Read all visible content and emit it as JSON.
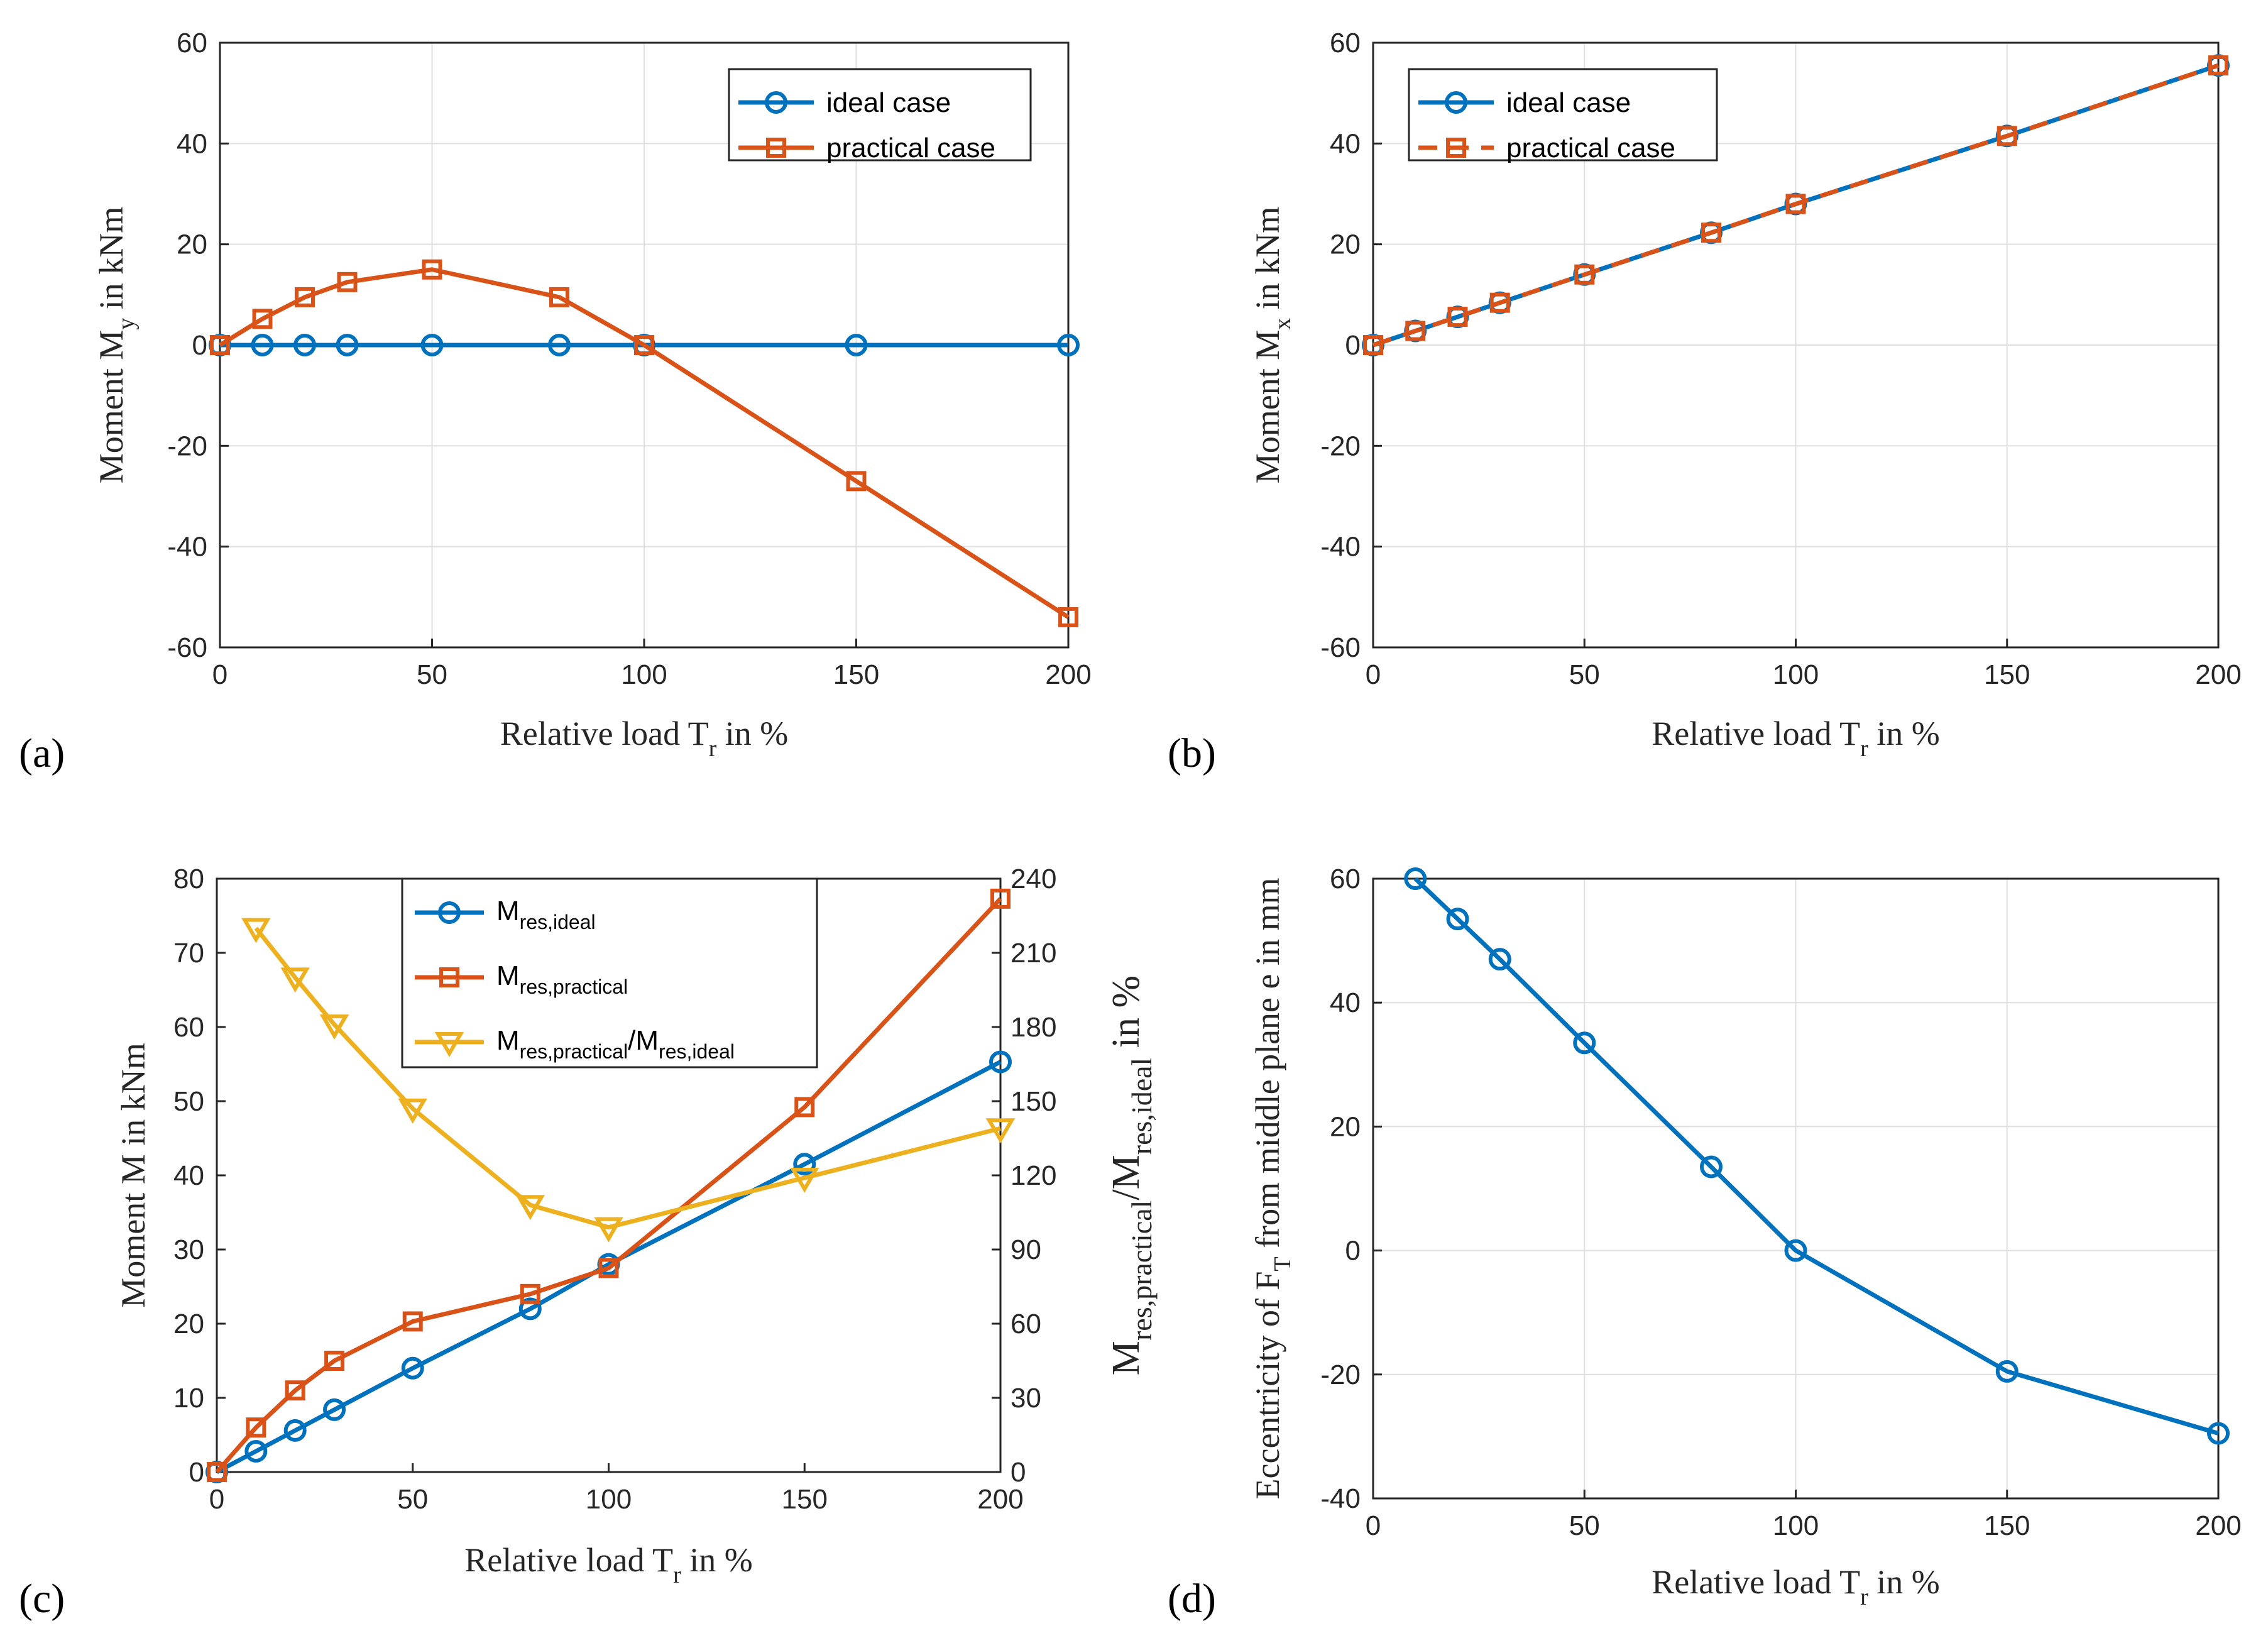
{
  "colors": {
    "ideal": "#0072bd",
    "practical": "#d95319",
    "ratio": "#edb120",
    "axis": "#262626"
  },
  "chart_data": [
    {
      "panel": "(a)",
      "type": "line",
      "xlabel_main": "Relative load T",
      "xlabel_sub": "r",
      "xlabel_tail": " in %",
      "ylabel_main": "Moment M",
      "ylabel_sub": "y",
      "ylabel_tail": " in kNm",
      "xlim": [
        0,
        200
      ],
      "ylim": [
        -60,
        60
      ],
      "xticks": [
        "0",
        "50",
        "100",
        "150",
        "200"
      ],
      "yticks": [
        "-60",
        "-40",
        "-20",
        "0",
        "20",
        "40",
        "60"
      ],
      "legend_position": "top-right",
      "series": [
        {
          "name": "ideal case",
          "marker": "circle",
          "color": "ideal",
          "dash": false,
          "x": [
            0,
            10,
            20,
            30,
            50,
            80,
            100,
            150,
            200
          ],
          "y": [
            0,
            0,
            0,
            0,
            0,
            0,
            0,
            0,
            0
          ]
        },
        {
          "name": "practical case",
          "marker": "square",
          "color": "practical",
          "dash": false,
          "x": [
            0,
            10,
            20,
            30,
            50,
            80,
            100,
            150,
            200
          ],
          "y": [
            0,
            5.2,
            9.5,
            12.5,
            15,
            9.5,
            0,
            -27,
            -54
          ]
        }
      ]
    },
    {
      "panel": "(b)",
      "type": "line",
      "xlabel_main": "Relative load T",
      "xlabel_sub": "r",
      "xlabel_tail": " in %",
      "ylabel_main": "Moment M",
      "ylabel_sub": "x",
      "ylabel_tail": " in kNm",
      "xlim": [
        0,
        200
      ],
      "ylim": [
        -60,
        60
      ],
      "xticks": [
        "0",
        "50",
        "100",
        "150",
        "200"
      ],
      "yticks": [
        "-60",
        "-40",
        "-20",
        "0",
        "20",
        "40",
        "60"
      ],
      "legend_position": "top-left",
      "series": [
        {
          "name": "ideal case",
          "marker": "circle",
          "color": "ideal",
          "dash": false,
          "x": [
            0,
            10,
            20,
            30,
            50,
            80,
            100,
            150,
            200
          ],
          "y": [
            0,
            2.8,
            5.6,
            8.4,
            14,
            22.3,
            28,
            41.5,
            55.5
          ]
        },
        {
          "name": "practical case",
          "marker": "square",
          "color": "practical",
          "dash": true,
          "x": [
            0,
            10,
            20,
            30,
            50,
            80,
            100,
            150,
            200
          ],
          "y": [
            0,
            2.8,
            5.6,
            8.4,
            14,
            22.3,
            28,
            41.5,
            55.5
          ]
        }
      ]
    },
    {
      "panel": "(c)",
      "type": "line",
      "xlabel_main": "Relative load T",
      "xlabel_sub": "r",
      "xlabel_tail": " in %",
      "ylabel_main": "Moment M in kNm",
      "y2label": {
        "a": "M",
        "asub": "res,practical",
        "b": "/M",
        "bsub": "res,ideal",
        "tail": " in %"
      },
      "xlim": [
        0,
        200
      ],
      "ylim": [
        0,
        80
      ],
      "y2lim": [
        0,
        240
      ],
      "xticks": [
        "0",
        "50",
        "100",
        "150",
        "200"
      ],
      "yticks": [
        "0",
        "10",
        "20",
        "30",
        "40",
        "50",
        "60",
        "70",
        "80"
      ],
      "y2ticks": [
        "0",
        "30",
        "60",
        "90",
        "120",
        "150",
        "180",
        "210",
        "240"
      ],
      "legend_position": "top-center",
      "legend": [
        {
          "parts": [
            [
              "M",
              ""
            ],
            [
              "res,ideal",
              "sub"
            ]
          ],
          "marker": "circle",
          "color": "ideal"
        },
        {
          "parts": [
            [
              "M",
              ""
            ],
            [
              "res,practical",
              "sub"
            ]
          ],
          "marker": "square",
          "color": "practical"
        },
        {
          "parts": [
            [
              "M",
              ""
            ],
            [
              "res,practical",
              "sub"
            ],
            [
              "/M",
              ""
            ],
            [
              "res,ideal",
              "sub"
            ]
          ],
          "marker": "triangle",
          "color": "ratio"
        }
      ],
      "series": [
        {
          "name": "M_res,ideal",
          "marker": "circle",
          "color": "ideal",
          "axis": "left",
          "x": [
            0,
            10,
            20,
            30,
            50,
            80,
            100,
            150,
            200
          ],
          "y": [
            0,
            2.8,
            5.6,
            8.4,
            14,
            22,
            28,
            41.5,
            55.3
          ]
        },
        {
          "name": "M_res,practical",
          "marker": "square",
          "color": "practical",
          "axis": "left",
          "x": [
            0,
            10,
            20,
            30,
            50,
            80,
            100,
            150,
            200
          ],
          "y": [
            0,
            6,
            11,
            15,
            20.3,
            24,
            27.5,
            49.2,
            77.3
          ]
        },
        {
          "name": "M_res,practical/M_res,ideal",
          "marker": "triangle",
          "color": "ratio",
          "axis": "right",
          "x": [
            10,
            20,
            30,
            50,
            80,
            100,
            150,
            200
          ],
          "y": [
            220,
            200,
            181,
            147,
            108,
            99,
            119,
            139
          ]
        }
      ]
    },
    {
      "panel": "(d)",
      "type": "line",
      "xlabel_main": "Relative load T",
      "xlabel_sub": "r",
      "xlabel_tail": " in %",
      "ylabel_main": "Eccentricity of F",
      "ylabel_sub": "T",
      "ylabel_tail": " from middle plane e in mm",
      "xlim": [
        0,
        200
      ],
      "ylim": [
        -40,
        60
      ],
      "xticks": [
        "0",
        "50",
        "100",
        "150",
        "200"
      ],
      "yticks": [
        "-40",
        "-20",
        "0",
        "20",
        "40",
        "60"
      ],
      "series": [
        {
          "name": "eccentricity",
          "marker": "circle",
          "color": "ideal",
          "x": [
            10,
            20,
            30,
            50,
            80,
            100,
            150,
            200
          ],
          "y": [
            60,
            53.5,
            47,
            33.5,
            13.5,
            0,
            -19.5,
            -29.5
          ]
        }
      ]
    }
  ]
}
